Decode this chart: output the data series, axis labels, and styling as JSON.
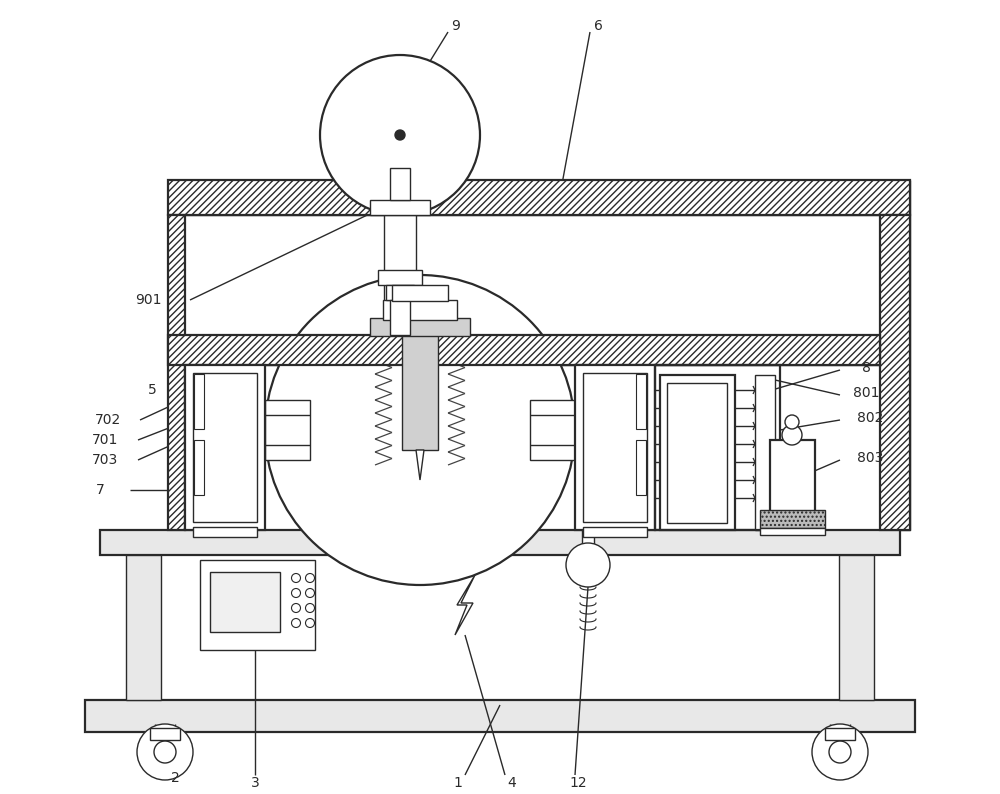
{
  "bg": "#ffffff",
  "lc": "#2a2a2a",
  "lw": 1.0,
  "lw2": 1.6,
  "fs": 10,
  "fig_w": 10.0,
  "fig_h": 7.94,
  "dpi": 100
}
